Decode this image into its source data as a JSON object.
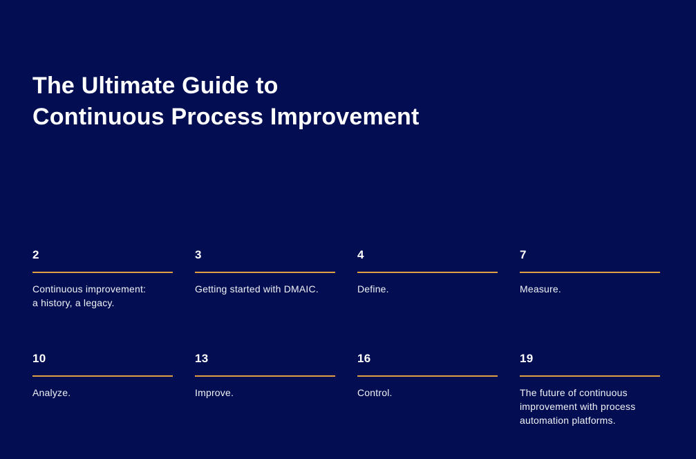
{
  "page": {
    "background_color": "#030e52",
    "accent_color": "#e0a042",
    "text_color": "#ffffff",
    "title": "The Ultimate Guide to\nContinuous Process Improvement"
  },
  "toc": {
    "items": [
      {
        "page_number": "2",
        "label": "Continuous improvement:\na history, a legacy."
      },
      {
        "page_number": "3",
        "label": "Getting started with DMAIC."
      },
      {
        "page_number": "4",
        "label": "Define."
      },
      {
        "page_number": "7",
        "label": "Measure."
      },
      {
        "page_number": "10",
        "label": "Analyze."
      },
      {
        "page_number": "13",
        "label": "Improve."
      },
      {
        "page_number": "16",
        "label": "Control."
      },
      {
        "page_number": "19",
        "label": "The future of continuous\nimprovement with process\nautomation platforms."
      }
    ]
  }
}
